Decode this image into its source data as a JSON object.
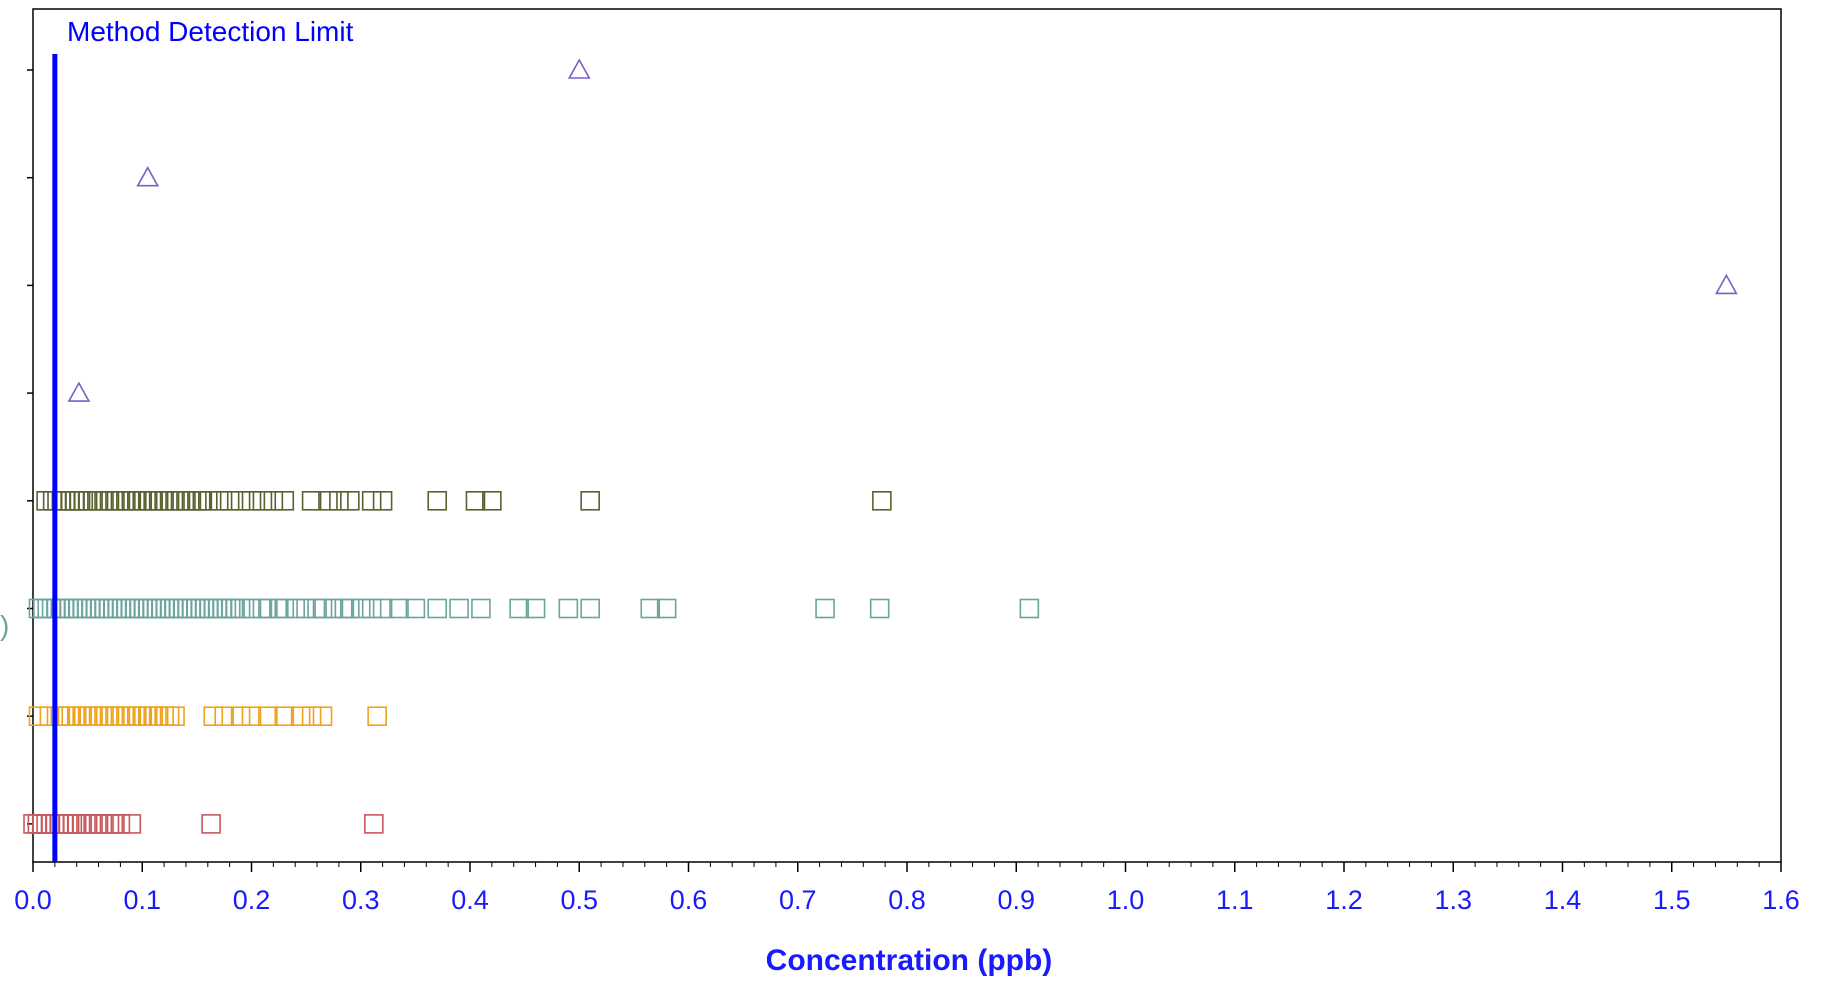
{
  "colors": {
    "axis_text": "#1a1aff",
    "mdl_line": "#0000ff",
    "frame": "#000000",
    "triangle": "#7b5fc7",
    "row_dark": "#59622f",
    "row_teal": "#6ca39e",
    "row_orange": "#f0a21c",
    "row_red": "#c9585a"
  },
  "chart_data": {
    "type": "scatter",
    "xlabel": "Concentration  (ppb)",
    "ylabel": "",
    "xlim": [
      0,
      1.6
    ],
    "x_ticks": [
      "0.0",
      "0.1",
      "0.2",
      "0.3",
      "0.4",
      "0.5",
      "0.6",
      "0.7",
      "0.8",
      "0.9",
      "1.0",
      "1.1",
      "1.2",
      "1.3",
      "1.4",
      "1.5",
      "1.6"
    ],
    "grid": false,
    "reference_line": {
      "label": "Method Detection Limit",
      "x": 0.02
    },
    "truncated_y_label": ")",
    "rows": 8,
    "series": [
      {
        "row": 1,
        "marker": "triangle",
        "color_key": "triangle",
        "x": [
          0.5
        ]
      },
      {
        "row": 2,
        "marker": "triangle",
        "color_key": "triangle",
        "x": [
          0.105
        ]
      },
      {
        "row": 3,
        "marker": "triangle",
        "color_key": "triangle",
        "x": [
          1.55
        ]
      },
      {
        "row": 4,
        "marker": "triangle",
        "color_key": "triangle",
        "x": [
          0.042
        ]
      },
      {
        "row": 5,
        "marker": "square",
        "color_key": "row_dark",
        "x": [
          0.012,
          0.018,
          0.022,
          0.026,
          0.03,
          0.034,
          0.038,
          0.042,
          0.046,
          0.05,
          0.055,
          0.06,
          0.065,
          0.07,
          0.075,
          0.08,
          0.085,
          0.09,
          0.095,
          0.1,
          0.105,
          0.11,
          0.115,
          0.12,
          0.125,
          0.13,
          0.135,
          0.14,
          0.145,
          0.15,
          0.155,
          0.16,
          0.17,
          0.18,
          0.19,
          0.2,
          0.21,
          0.22,
          0.23,
          0.255,
          0.27,
          0.28,
          0.29,
          0.31,
          0.32,
          0.37,
          0.405,
          0.42,
          0.51,
          0.777
        ]
      },
      {
        "row": 6,
        "marker": "square",
        "color_key": "row_teal",
        "x": [
          0.005,
          0.009,
          0.013,
          0.017,
          0.021,
          0.025,
          0.029,
          0.033,
          0.037,
          0.041,
          0.045,
          0.049,
          0.053,
          0.057,
          0.061,
          0.065,
          0.069,
          0.073,
          0.077,
          0.081,
          0.085,
          0.089,
          0.093,
          0.097,
          0.101,
          0.105,
          0.109,
          0.113,
          0.117,
          0.121,
          0.125,
          0.129,
          0.133,
          0.137,
          0.141,
          0.145,
          0.149,
          0.153,
          0.157,
          0.161,
          0.165,
          0.169,
          0.173,
          0.177,
          0.181,
          0.185,
          0.19,
          0.2,
          0.21,
          0.215,
          0.225,
          0.23,
          0.24,
          0.25,
          0.26,
          0.265,
          0.275,
          0.285,
          0.29,
          0.3,
          0.31,
          0.32,
          0.335,
          0.35,
          0.37,
          0.39,
          0.41,
          0.445,
          0.46,
          0.49,
          0.51,
          0.565,
          0.58,
          0.725,
          0.775,
          0.912
        ]
      },
      {
        "row": 7,
        "marker": "square",
        "color_key": "row_orange",
        "x": [
          0.005,
          0.015,
          0.025,
          0.03,
          0.035,
          0.04,
          0.045,
          0.05,
          0.055,
          0.06,
          0.065,
          0.07,
          0.075,
          0.08,
          0.085,
          0.09,
          0.095,
          0.1,
          0.105,
          0.11,
          0.115,
          0.12,
          0.125,
          0.13,
          0.165,
          0.175,
          0.19,
          0.2,
          0.215,
          0.23,
          0.245,
          0.255,
          0.265,
          0.315
        ]
      },
      {
        "row": 8,
        "marker": "square",
        "color_key": "row_red",
        "x": [
          0.0,
          0.004,
          0.008,
          0.012,
          0.016,
          0.02,
          0.024,
          0.028,
          0.032,
          0.036,
          0.04,
          0.045,
          0.05,
          0.055,
          0.06,
          0.065,
          0.07,
          0.075,
          0.08,
          0.09,
          0.163,
          0.312
        ]
      }
    ]
  }
}
